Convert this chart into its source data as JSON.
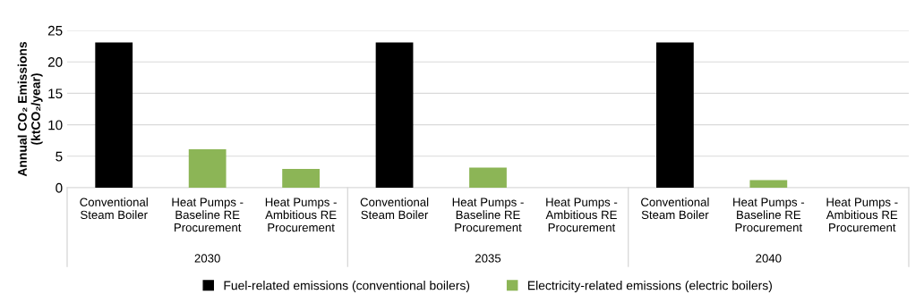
{
  "chart_data": {
    "type": "bar",
    "ylabel": "Annual CO₂ Emissions\n(ktCO₂/year)",
    "categories": [
      "Conventional\nSteam Boiler",
      "Heat Pumps -\nBaseline RE\nProcurement",
      "Heat Pumps -\nAmbitious RE\nProcurement",
      "Conventional\nSteam Boiler",
      "Heat Pumps -\nBaseline RE\nProcurement",
      "Heat Pumps -\nAmbitious RE\nProcurement",
      "Conventional\nSteam Boiler",
      "Heat Pumps -\nBaseline RE\nProcurement",
      "Heat Pumps -\nAmbitious RE\nProcurement"
    ],
    "series": [
      {
        "name": "Fuel-related emissions (conventional boilers)",
        "color": "#000000",
        "values": [
          23.1,
          null,
          null,
          23.1,
          null,
          null,
          23.1,
          null,
          null
        ]
      },
      {
        "name": "Electricity-related emissions (electric boilers)",
        "color": "#8cb556",
        "values": [
          null,
          6.1,
          3.0,
          null,
          3.2,
          0,
          null,
          1.2,
          0
        ]
      }
    ],
    "annotations": [
      "2030",
      "2035",
      "2040"
    ],
    "ylim": [
      0,
      25
    ],
    "yticks": [
      0,
      5,
      10,
      15,
      20,
      25
    ],
    "grid": "y",
    "legend": "bottom"
  }
}
